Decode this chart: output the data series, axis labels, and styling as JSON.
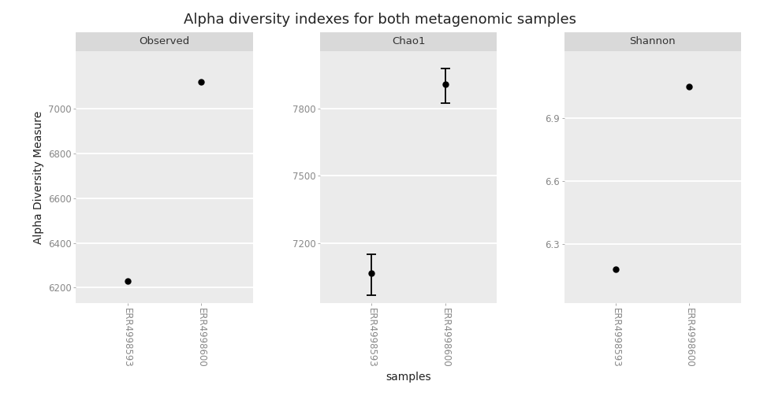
{
  "title": "Alpha diversity indexes for both metagenomic samples",
  "ylabel": "Alpha Diversity Measure",
  "xlabel": "samples",
  "panels": [
    {
      "name": "Observed",
      "samples": [
        "ERR4998593",
        "ERR4998600"
      ],
      "values": [
        6230,
        7120
      ],
      "yerr_low": [
        0,
        0
      ],
      "yerr_high": [
        0,
        0
      ],
      "yticks": [
        6200,
        6400,
        6600,
        6800,
        7000
      ],
      "ylim": [
        6130,
        7260
      ]
    },
    {
      "name": "Chao1",
      "samples": [
        "ERR4998593",
        "ERR4998600"
      ],
      "values": [
        7065,
        7910
      ],
      "yerr_low": [
        100,
        85
      ],
      "yerr_high": [
        85,
        70
      ],
      "yticks": [
        7200,
        7500,
        7800
      ],
      "ylim": [
        6930,
        8060
      ]
    },
    {
      "name": "Shannon",
      "samples": [
        "ERR4998593",
        "ERR4998600"
      ],
      "values": [
        6.18,
        7.05
      ],
      "yerr_low": [
        0,
        0
      ],
      "yerr_high": [
        0,
        0
      ],
      "yticks": [
        6.3,
        6.6,
        6.9
      ],
      "ylim": [
        6.02,
        7.22
      ]
    }
  ],
  "fig_bg_color": "#FFFFFF",
  "panel_bg_color": "#EBEBEB",
  "grid_color": "#FFFFFF",
  "header_bg": "#D9D9D9",
  "point_color": "#000000",
  "point_size": 5,
  "tick_label_color": "#888888",
  "title_fontsize": 13,
  "axis_label_fontsize": 10,
  "tick_fontsize": 8.5,
  "panel_label_fontsize": 9.5
}
